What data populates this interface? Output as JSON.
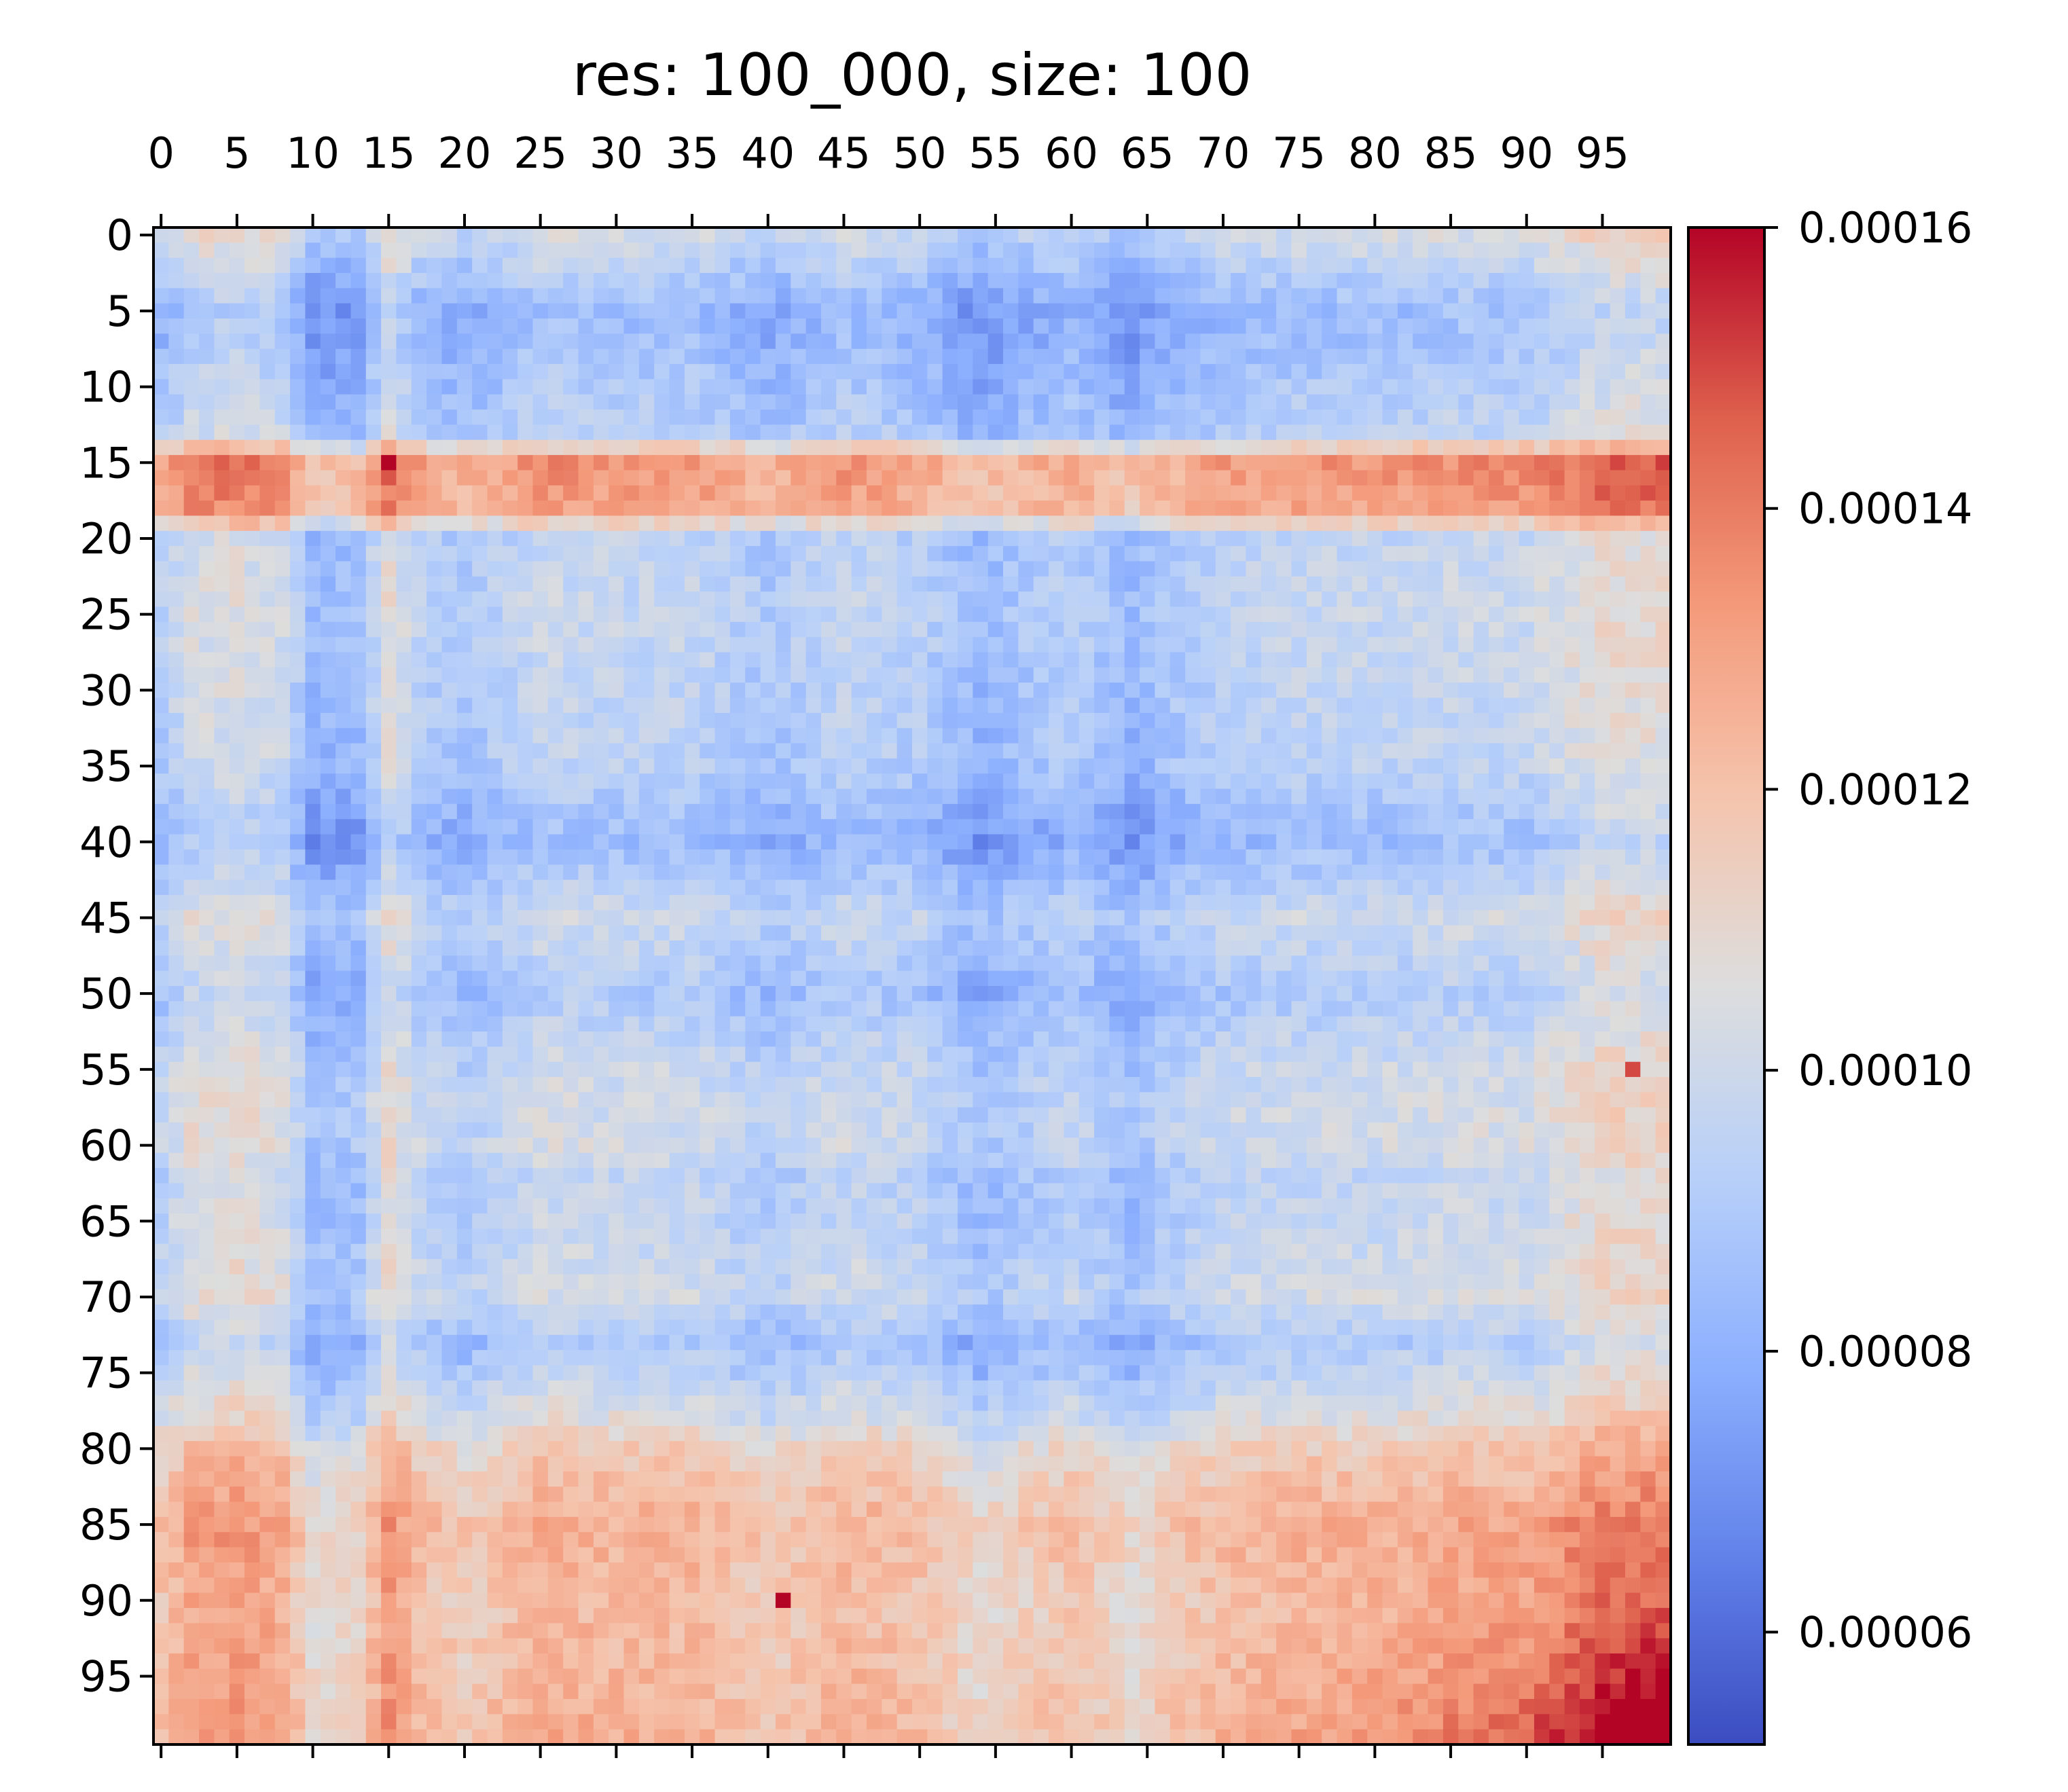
{
  "chart_data": {
    "type": "heatmap",
    "title": "res: 100_000, size: 100",
    "colormap": "coolwarm",
    "size": 100,
    "vmin": 5.2e-05,
    "vmax": 0.00016,
    "x_ticks": [
      0,
      5,
      10,
      15,
      20,
      25,
      30,
      35,
      40,
      45,
      50,
      55,
      60,
      65,
      70,
      75,
      80,
      85,
      90,
      95
    ],
    "x_tick_labels": [
      "0",
      "5",
      "10",
      "15",
      "20",
      "25",
      "30",
      "35",
      "40",
      "45",
      "50",
      "55",
      "60",
      "65",
      "70",
      "75",
      "80",
      "85",
      "90",
      "95"
    ],
    "x_tick_position": "top",
    "y_ticks": [
      0,
      5,
      10,
      15,
      20,
      25,
      30,
      35,
      40,
      45,
      50,
      55,
      60,
      65,
      70,
      75,
      80,
      85,
      90,
      95
    ],
    "y_tick_labels": [
      "0",
      "5",
      "10",
      "15",
      "20",
      "25",
      "30",
      "35",
      "40",
      "45",
      "50",
      "55",
      "60",
      "65",
      "70",
      "75",
      "80",
      "85",
      "90",
      "95"
    ],
    "colorbar": {
      "ticks": [
        6e-05,
        8e-05,
        0.0001,
        0.00012,
        0.00014,
        0.00016
      ],
      "tick_labels": [
        "0.00006",
        "0.00008",
        "0.00010",
        "0.00012",
        "0.00014",
        "0.00016"
      ]
    },
    "row_profile": [
      [
        0,
        9.8e-05
      ],
      [
        5,
        8e-05
      ],
      [
        10,
        8.6e-05
      ],
      [
        13,
        9e-05
      ],
      [
        15,
        0.00013
      ],
      [
        18,
        0.000126
      ],
      [
        20,
        9.2e-05
      ],
      [
        25,
        9.4e-05
      ],
      [
        35,
        9e-05
      ],
      [
        40,
        8e-05
      ],
      [
        45,
        9.6e-05
      ],
      [
        50,
        8.6e-05
      ],
      [
        55,
        9.6e-05
      ],
      [
        60,
        9.8e-05
      ],
      [
        62,
        9.2e-05
      ],
      [
        65,
        9.4e-05
      ],
      [
        70,
        9.8e-05
      ],
      [
        73,
        8.6e-05
      ],
      [
        75,
        9.2e-05
      ],
      [
        78,
        0.000102
      ],
      [
        80,
        0.000112
      ],
      [
        85,
        0.000122
      ],
      [
        90,
        0.000118
      ],
      [
        95,
        0.00012
      ],
      [
        99,
        0.000122
      ]
    ],
    "col_profile": [
      [
        0,
        0.0
      ],
      [
        2,
        1e-05
      ],
      [
        5,
        1.2e-05
      ],
      [
        8,
        8e-06
      ],
      [
        10,
        -1e-05
      ],
      [
        13,
        -8e-06
      ],
      [
        15,
        1.4e-05
      ],
      [
        17,
        2e-06
      ],
      [
        20,
        -4e-06
      ],
      [
        25,
        6e-06
      ],
      [
        30,
        4e-06
      ],
      [
        35,
        4e-06
      ],
      [
        40,
        -4e-06
      ],
      [
        45,
        4e-06
      ],
      [
        50,
        0.0
      ],
      [
        54,
        -1e-05
      ],
      [
        56,
        -6e-06
      ],
      [
        60,
        0.0
      ],
      [
        64,
        -1e-05
      ],
      [
        66,
        -4e-06
      ],
      [
        70,
        2e-06
      ],
      [
        75,
        4e-06
      ],
      [
        80,
        4e-06
      ],
      [
        85,
        6e-06
      ],
      [
        90,
        6e-06
      ],
      [
        93,
        1.2e-05
      ],
      [
        95,
        1.6e-05
      ],
      [
        99,
        1.6e-05
      ]
    ],
    "corner_boost": 3.4e-05,
    "outliers": [
      {
        "row": 15,
        "col": 15,
        "value": 0.00016
      },
      {
        "row": 90,
        "col": 41,
        "value": 0.00016
      },
      {
        "row": 55,
        "col": 97,
        "value": 0.00015
      }
    ]
  }
}
